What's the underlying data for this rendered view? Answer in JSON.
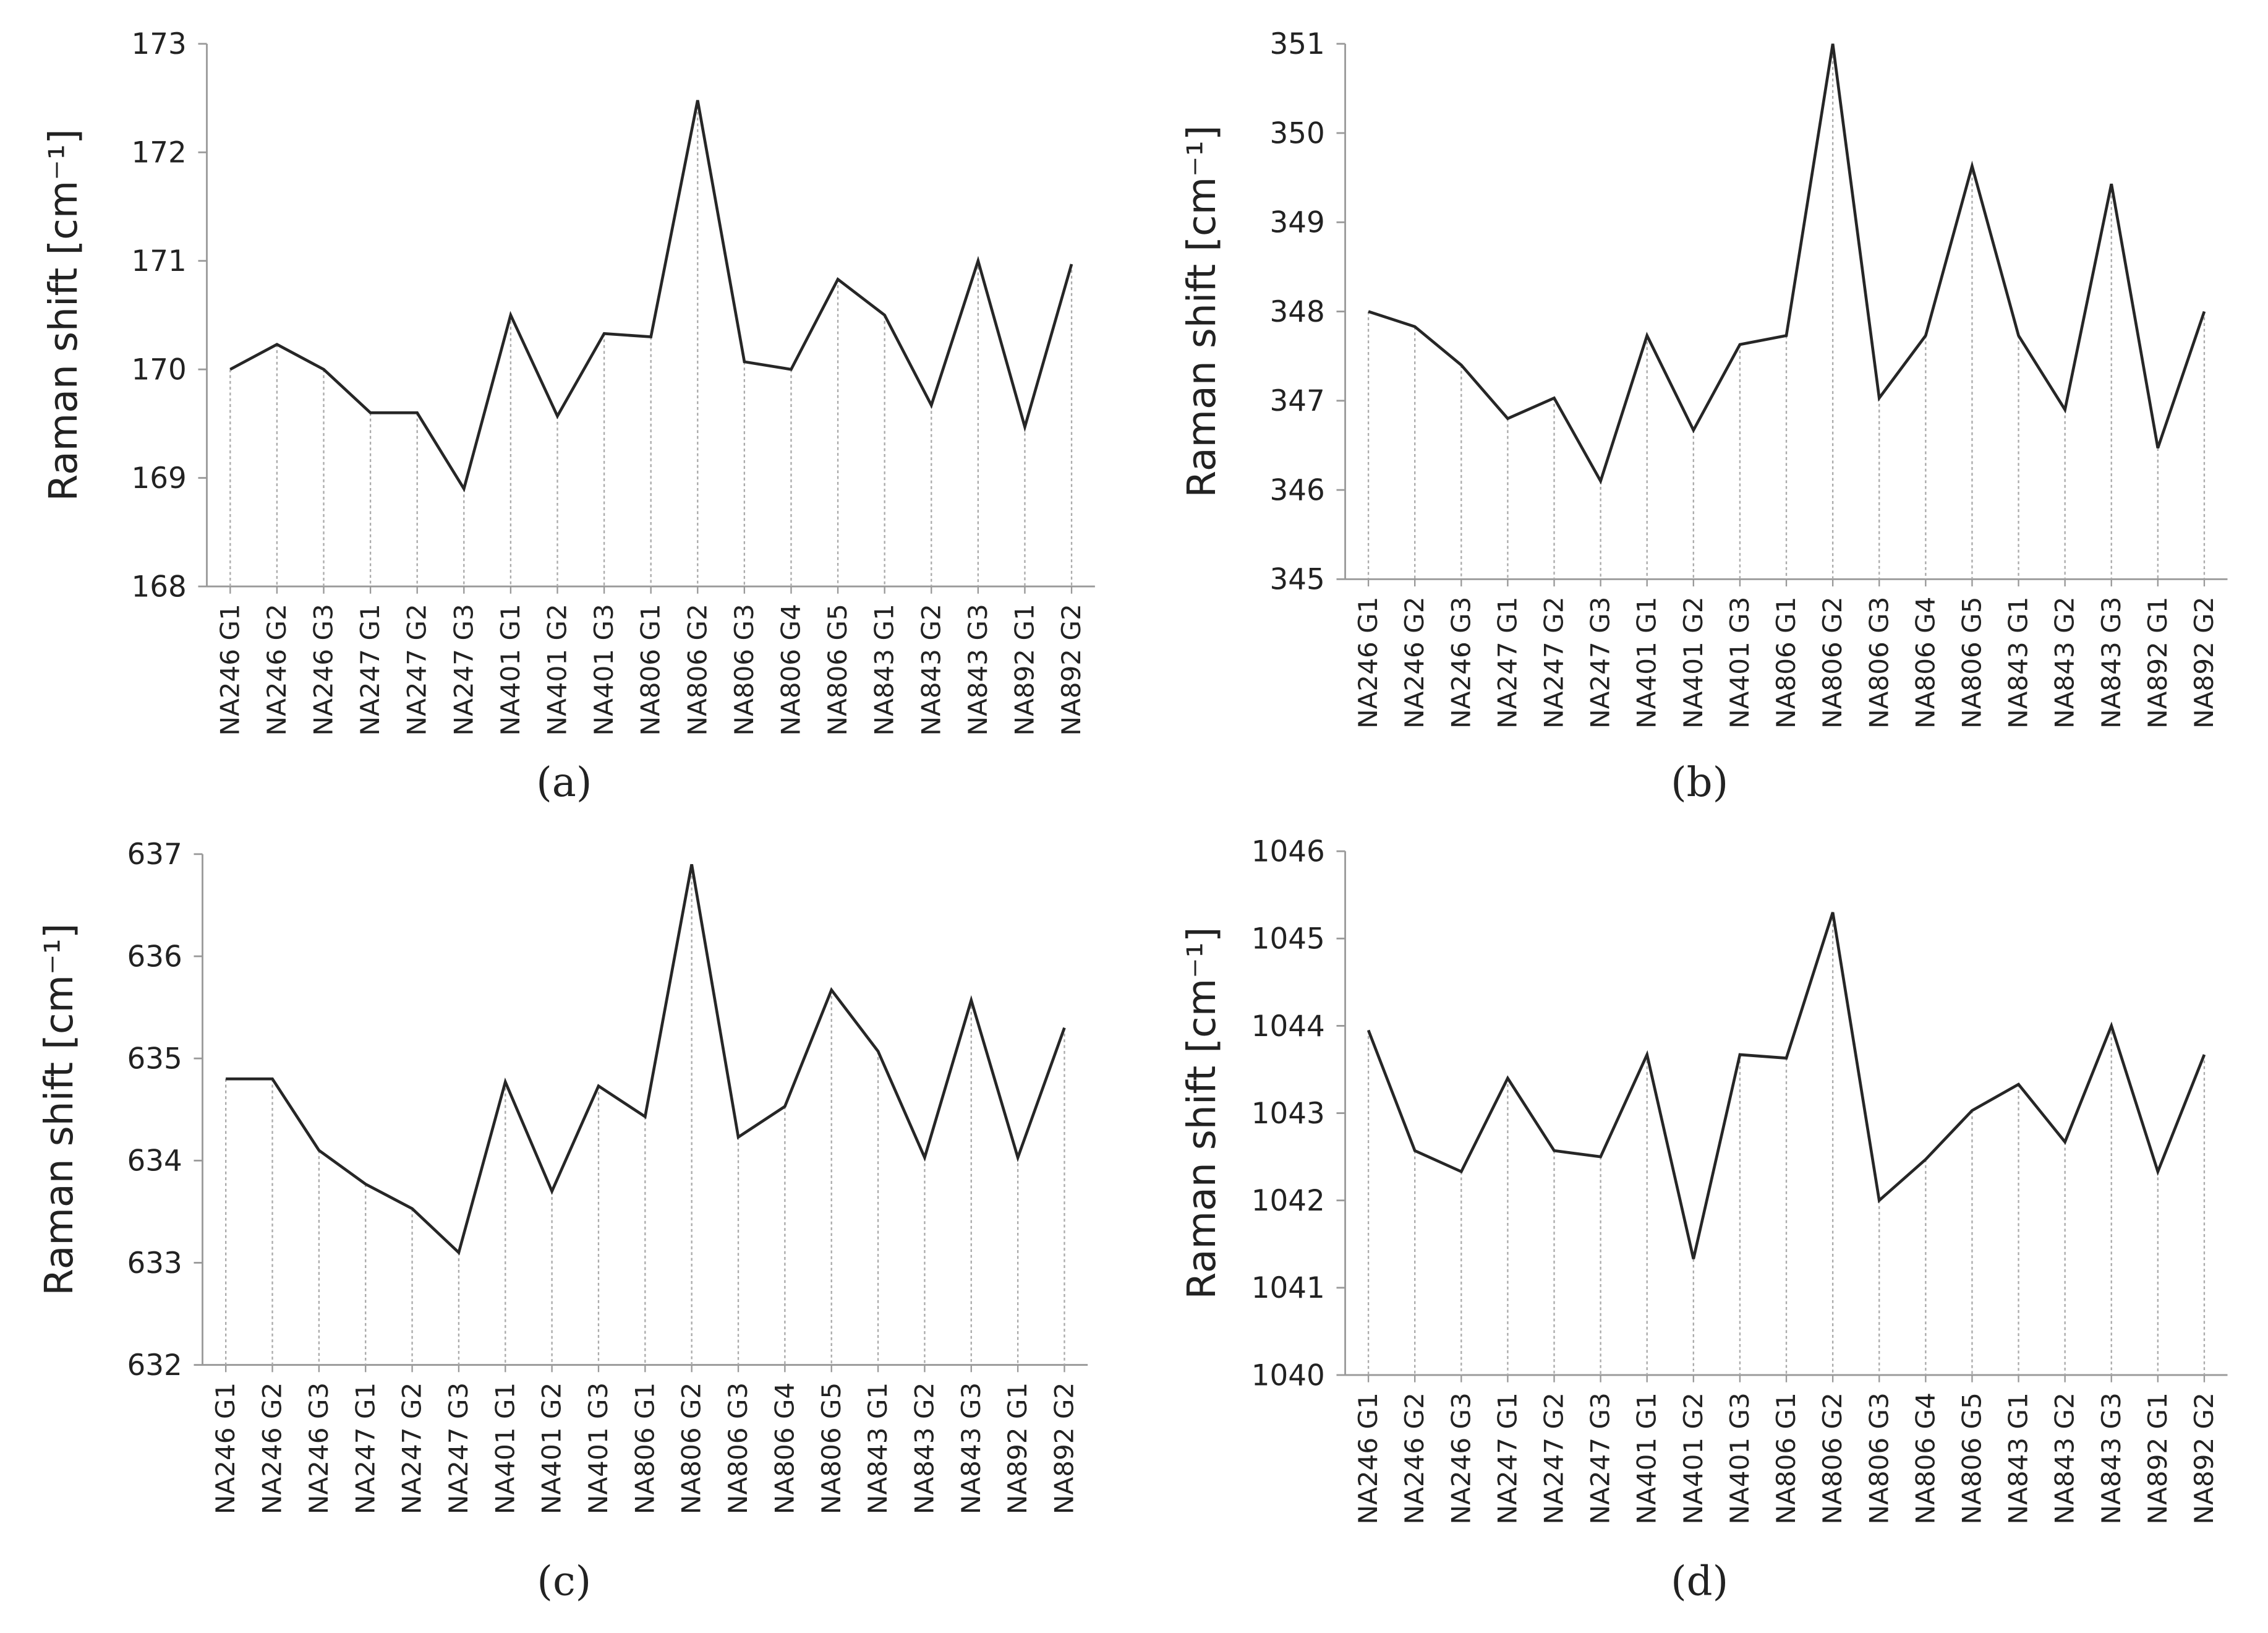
{
  "chart_data": [
    {
      "type": "line",
      "caption": "(a)",
      "ylabel": "Raman shift [cm⁻¹]",
      "color": "#262626",
      "categories": [
        "NA246 G1",
        "NA246 G2",
        "NA246 G3",
        "NA247 G1",
        "NA247 G2",
        "NA247 G3",
        "NA401 G1",
        "NA401 G2",
        "NA401 G3",
        "NA806 G1",
        "NA806 G2",
        "NA806 G3",
        "NA806 G4",
        "NA806 G5",
        "NA843 G1",
        "NA843 G2",
        "NA843 G3",
        "NA892 G1",
        "NA892 G2"
      ],
      "values": [
        170,
        170.23,
        170,
        169.6,
        169.6,
        168.9,
        170.5,
        169.57,
        170.33,
        170.3,
        172.48,
        170.07,
        170,
        170.83,
        170.5,
        169.67,
        171,
        169.47,
        170.97
      ],
      "ylim": [
        168,
        173
      ],
      "yticks": [
        168,
        169,
        170,
        171,
        172,
        173
      ],
      "drop_lines": true
    },
    {
      "type": "line",
      "caption": "(b)",
      "ylabel": "Raman shift [cm⁻¹]",
      "color": "#262626",
      "categories": [
        "NA246 G1",
        "NA246 G2",
        "NA246 G3",
        "NA247 G1",
        "NA247 G2",
        "NA247 G3",
        "NA401 G1",
        "NA401 G2",
        "NA401 G3",
        "NA806 G1",
        "NA806 G2",
        "NA806 G3",
        "NA806 G4",
        "NA806 G5",
        "NA843 G1",
        "NA843 G2",
        "NA843 G3",
        "NA892 G1",
        "NA892 G2"
      ],
      "values": [
        348,
        347.83,
        347.4,
        346.8,
        347.03,
        346.1,
        347.73,
        346.67,
        347.63,
        347.73,
        351,
        347.03,
        347.73,
        349.63,
        347.73,
        346.9,
        349.43,
        346.47,
        348
      ],
      "ylim": [
        345,
        351
      ],
      "yticks": [
        345,
        346,
        347,
        348,
        349,
        350,
        351
      ],
      "drop_lines": true
    },
    {
      "type": "line",
      "caption": "(c)",
      "ylabel": "Raman shift [cm⁻¹]",
      "color": "#262626",
      "categories": [
        "NA246 G1",
        "NA246 G2",
        "NA246 G3",
        "NA247 G1",
        "NA247 G2",
        "NA247 G3",
        "NA401 G1",
        "NA401 G2",
        "NA401 G3",
        "NA806 G1",
        "NA806 G2",
        "NA806 G3",
        "NA806 G4",
        "NA806 G5",
        "NA843 G1",
        "NA843 G2",
        "NA843 G3",
        "NA892 G1",
        "NA892 G2"
      ],
      "values": [
        634.8,
        634.8,
        634.1,
        633.77,
        633.53,
        633.1,
        634.77,
        633.7,
        634.73,
        634.43,
        636.9,
        634.23,
        634.53,
        635.67,
        635.07,
        634.03,
        635.57,
        634.03,
        635.3
      ],
      "ylim": [
        632,
        637
      ],
      "yticks": [
        632,
        633,
        634,
        635,
        636,
        637
      ],
      "drop_lines": true
    },
    {
      "type": "line",
      "caption": "(d)",
      "ylabel": "Raman shift [cm⁻¹]",
      "color": "#262626",
      "categories": [
        "NA246 G1",
        "NA246 G2",
        "NA246 G3",
        "NA247 G1",
        "NA247 G2",
        "NA247 G3",
        "NA401 G1",
        "NA401 G2",
        "NA401 G3",
        "NA806 G1",
        "NA806 G2",
        "NA806 G3",
        "NA806 G4",
        "NA806 G5",
        "NA843 G1",
        "NA843 G2",
        "NA843 G3",
        "NA892 G1",
        "NA892 G2"
      ],
      "values": [
        1043.95,
        1042.57,
        1042.33,
        1043.4,
        1042.57,
        1042.5,
        1043.67,
        1041.33,
        1043.67,
        1043.63,
        1045.3,
        1042,
        1042.47,
        1043.03,
        1043.33,
        1042.67,
        1044,
        1042.33,
        1043.67
      ],
      "ylim": [
        1040,
        1046
      ],
      "yticks": [
        1040,
        1041,
        1042,
        1043,
        1044,
        1045,
        1046
      ],
      "drop_lines": true
    }
  ]
}
